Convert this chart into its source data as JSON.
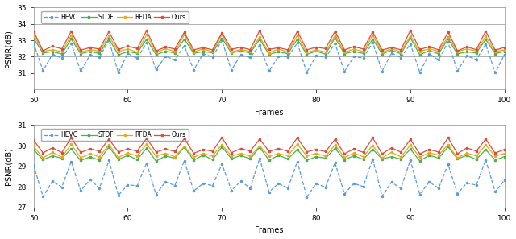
{
  "top_plot": {
    "ylim": [
      30,
      35
    ],
    "yticks": [
      31,
      32,
      33,
      34,
      35
    ],
    "ylabel": "PSNR(dB)",
    "hlines": [
      32.0,
      34.0
    ],
    "hline_color": "#b0b0b0",
    "hline_lw": 0.7
  },
  "bottom_plot": {
    "ylim": [
      27,
      31
    ],
    "yticks": [
      27,
      28,
      29,
      30,
      31
    ],
    "ylabel": "PSNR(dB)",
    "hlines": [
      28.0
    ],
    "hline_color": "#b0b0b0",
    "hline_lw": 0.7
  },
  "xrange": [
    50,
    100
  ],
  "xticks": [
    50,
    60,
    70,
    80,
    90,
    100
  ],
  "xlabel": "Frames",
  "colors": {
    "hevc": "#5b9bd5",
    "stdf": "#4caf50",
    "rfda": "#e6a817",
    "ours": "#d94f3d"
  },
  "legend_labels": [
    "HEVC",
    "STDF",
    "RFDA",
    "Ours"
  ],
  "line_width": 0.9,
  "marker_size": 2.0,
  "background_color": "#ffffff"
}
